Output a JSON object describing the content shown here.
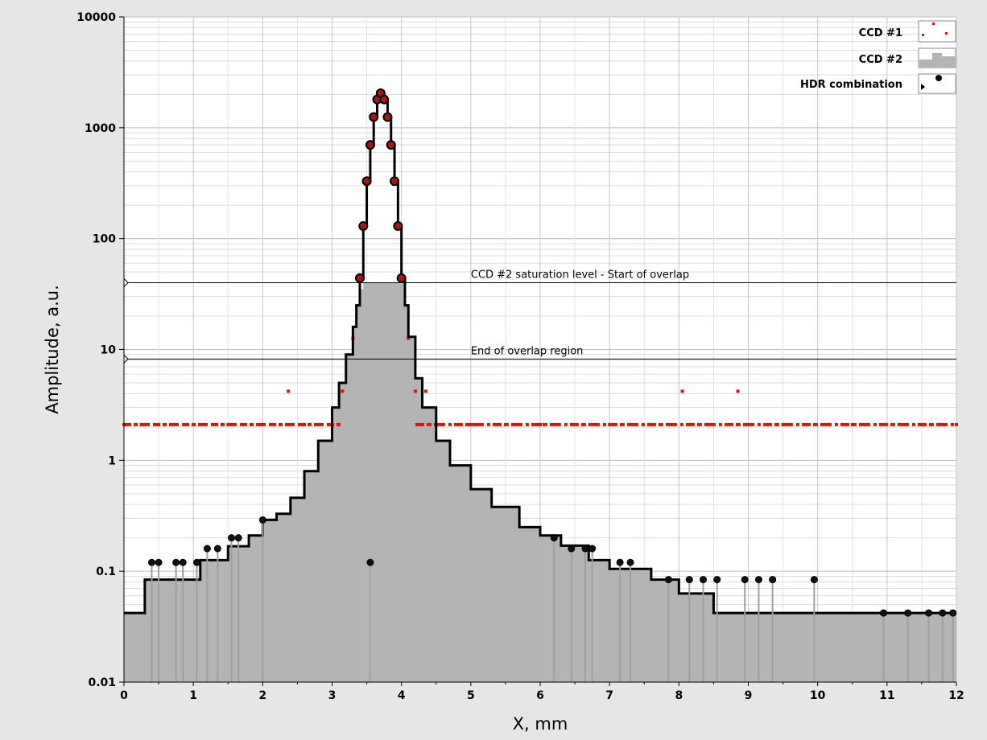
{
  "chart_data": {
    "type": "line",
    "x_scale": "linear",
    "y_scale": "log",
    "xlim": [
      0,
      12
    ],
    "ylim": [
      0.01,
      10000
    ],
    "xlabel": "X, mm",
    "ylabel": "Amplitude, a.u.",
    "x_ticks": [
      "0",
      "1",
      "2",
      "3",
      "4",
      "5",
      "6",
      "7",
      "8",
      "9",
      "10",
      "11",
      "12"
    ],
    "y_ticks": [
      "0.01",
      "0.1",
      "1",
      "10",
      "100",
      "1000",
      "10000"
    ],
    "grid": true,
    "legend_position": "top-right",
    "colors": {
      "ccd1": "#e01010",
      "ccd2": "#b4b4b4",
      "hdr": "#000000",
      "hdr_marker_fill": "#a01818",
      "plot_bg": "#ffffff",
      "frame_bg": "#e6e6e6"
    },
    "series": [
      {
        "name": "CCD #1",
        "style": "points",
        "x": [
          0.0,
          0.25,
          0.5,
          1.0,
          1.5,
          2.0,
          2.37,
          2.6,
          3.0,
          3.15,
          3.3,
          3.4,
          3.45,
          3.5,
          3.55,
          3.6,
          3.65,
          3.7,
          3.75,
          3.8,
          3.85,
          3.9,
          3.95,
          4.0,
          4.1,
          4.2,
          4.35,
          4.6,
          5.0,
          6.0,
          7.0,
          8.05,
          8.85,
          9.5,
          10.5,
          11.5,
          12.0
        ],
        "y": [
          2.1,
          2.1,
          2.1,
          2.1,
          2.1,
          2.1,
          4.2,
          2.1,
          2.1,
          4.2,
          12.6,
          44,
          130,
          330,
          700,
          1250,
          1800,
          2050,
          1800,
          1250,
          700,
          330,
          130,
          44,
          12.6,
          4.2,
          4.2,
          2.1,
          2.1,
          2.1,
          2.1,
          4.2,
          4.2,
          2.1,
          2.1,
          2.1,
          2.1
        ]
      },
      {
        "name": "CCD #2",
        "style": "filled-step",
        "x": [
          0.0,
          0.3,
          0.7,
          1.1,
          1.5,
          1.8,
          2.0,
          2.2,
          2.4,
          2.6,
          2.8,
          3.0,
          3.1,
          3.2,
          3.3,
          3.35,
          3.4,
          3.45,
          4.0,
          4.05,
          4.1,
          4.2,
          4.3,
          4.5,
          4.7,
          5.0,
          5.3,
          5.7,
          6.0,
          6.3,
          6.7,
          7.0,
          7.3,
          7.6,
          8.0,
          8.5,
          9.0,
          10.0,
          11.0,
          12.0
        ],
        "y": [
          0.042,
          0.084,
          0.084,
          0.126,
          0.168,
          0.21,
          0.29,
          0.33,
          0.46,
          0.8,
          1.5,
          3.0,
          5.0,
          9.0,
          16,
          25,
          35,
          40,
          40,
          25,
          13,
          5.5,
          3.0,
          1.5,
          0.9,
          0.55,
          0.38,
          0.25,
          0.21,
          0.17,
          0.126,
          0.105,
          0.105,
          0.084,
          0.063,
          0.042,
          0.042,
          0.042,
          0.042,
          0.042
        ]
      },
      {
        "name": "HDR combination",
        "style": "line-with-markers",
        "x": [
          0.0,
          0.3,
          0.7,
          1.1,
          1.5,
          1.8,
          2.0,
          2.2,
          2.4,
          2.6,
          2.8,
          3.0,
          3.1,
          3.2,
          3.3,
          3.35,
          3.4,
          3.45,
          3.5,
          3.55,
          3.6,
          3.65,
          3.7,
          3.75,
          3.8,
          3.85,
          3.9,
          3.95,
          4.0,
          4.05,
          4.1,
          4.2,
          4.3,
          4.5,
          4.7,
          5.0,
          5.3,
          5.7,
          6.0,
          6.3,
          6.7,
          7.0,
          7.3,
          7.6,
          8.0,
          8.5,
          9.0,
          10.0,
          11.0,
          12.0
        ],
        "y": [
          0.042,
          0.084,
          0.084,
          0.126,
          0.168,
          0.21,
          0.29,
          0.33,
          0.46,
          0.8,
          1.5,
          3.0,
          5.0,
          9.0,
          16,
          25,
          44,
          130,
          330,
          700,
          1250,
          1800,
          2050,
          1800,
          1250,
          700,
          330,
          130,
          44,
          25,
          13,
          5.5,
          3.0,
          1.5,
          0.9,
          0.55,
          0.38,
          0.25,
          0.21,
          0.17,
          0.126,
          0.105,
          0.105,
          0.084,
          0.063,
          0.042,
          0.042,
          0.042,
          0.042,
          0.042
        ]
      }
    ],
    "hdr_peak_markers_x": [
      3.4,
      3.45,
      3.5,
      3.55,
      3.6,
      3.65,
      3.7,
      3.75,
      3.8,
      3.85,
      3.9,
      3.95,
      4.0
    ],
    "hdr_low_markers": {
      "x": [
        0.4,
        0.5,
        0.75,
        0.85,
        1.05,
        1.2,
        1.35,
        1.55,
        1.65,
        2.0,
        3.55,
        6.2,
        6.45,
        6.65,
        6.75,
        7.15,
        7.3,
        7.85,
        8.15,
        8.35,
        8.55,
        8.95,
        9.15,
        9.35,
        9.95,
        10.95,
        11.3,
        11.6,
        11.8,
        11.95
      ],
      "y": [
        0.12,
        0.12,
        0.12,
        0.12,
        0.12,
        0.16,
        0.16,
        0.2,
        0.2,
        0.29,
        0.12,
        0.2,
        0.16,
        0.16,
        0.16,
        0.12,
        0.12,
        0.084,
        0.084,
        0.084,
        0.084,
        0.084,
        0.084,
        0.084,
        0.084,
        0.042,
        0.042,
        0.042,
        0.042,
        0.042
      ]
    },
    "cursors": [
      {
        "label": "CCD #2 saturation level - Start of overlap",
        "y": 40
      },
      {
        "label": "End of overlap region",
        "y": 8.2
      }
    ]
  }
}
